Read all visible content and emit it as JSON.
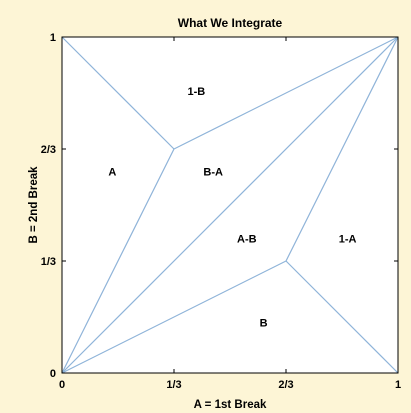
{
  "title": "What We Integrate",
  "x_axis": {
    "label": "A = 1st Break",
    "ticks": [
      {
        "value": 0,
        "label": "0"
      },
      {
        "value": 0.3333,
        "label": "1/3"
      },
      {
        "value": 0.6667,
        "label": "2/3"
      },
      {
        "value": 1,
        "label": "1"
      }
    ]
  },
  "y_axis": {
    "label": "B = 2nd Break",
    "ticks": [
      {
        "value": 0,
        "label": "0"
      },
      {
        "value": 0.3333,
        "label": "1/3"
      },
      {
        "value": 0.6667,
        "label": "2/3"
      },
      {
        "value": 1,
        "label": "1"
      }
    ]
  },
  "colors": {
    "background": "#fdf5d6",
    "plot_background": "#ffffff",
    "lines": "#8fb4d9",
    "frame": "#000000"
  },
  "segments": [
    {
      "from": [
        0,
        1
      ],
      "to": [
        0.3333,
        0.6667
      ]
    },
    {
      "from": [
        0.3333,
        0.6667
      ],
      "to": [
        1,
        1
      ]
    },
    {
      "from": [
        0.3333,
        0.6667
      ],
      "to": [
        0,
        0
      ]
    },
    {
      "from": [
        0,
        0
      ],
      "to": [
        1,
        1
      ]
    },
    {
      "from": [
        0,
        0
      ],
      "to": [
        0.6667,
        0.3333
      ]
    },
    {
      "from": [
        0.6667,
        0.3333
      ],
      "to": [
        1,
        1
      ]
    },
    {
      "from": [
        0.6667,
        0.3333
      ],
      "to": [
        1,
        0
      ]
    }
  ],
  "regions": [
    {
      "label": "1-B",
      "at": [
        0.4,
        0.84
      ]
    },
    {
      "label": "A",
      "at": [
        0.15,
        0.6
      ]
    },
    {
      "label": "B-A",
      "at": [
        0.45,
        0.6
      ]
    },
    {
      "label": "A-B",
      "at": [
        0.55,
        0.4
      ]
    },
    {
      "label": "1-A",
      "at": [
        0.85,
        0.4
      ]
    },
    {
      "label": "B",
      "at": [
        0.6,
        0.15
      ]
    }
  ]
}
